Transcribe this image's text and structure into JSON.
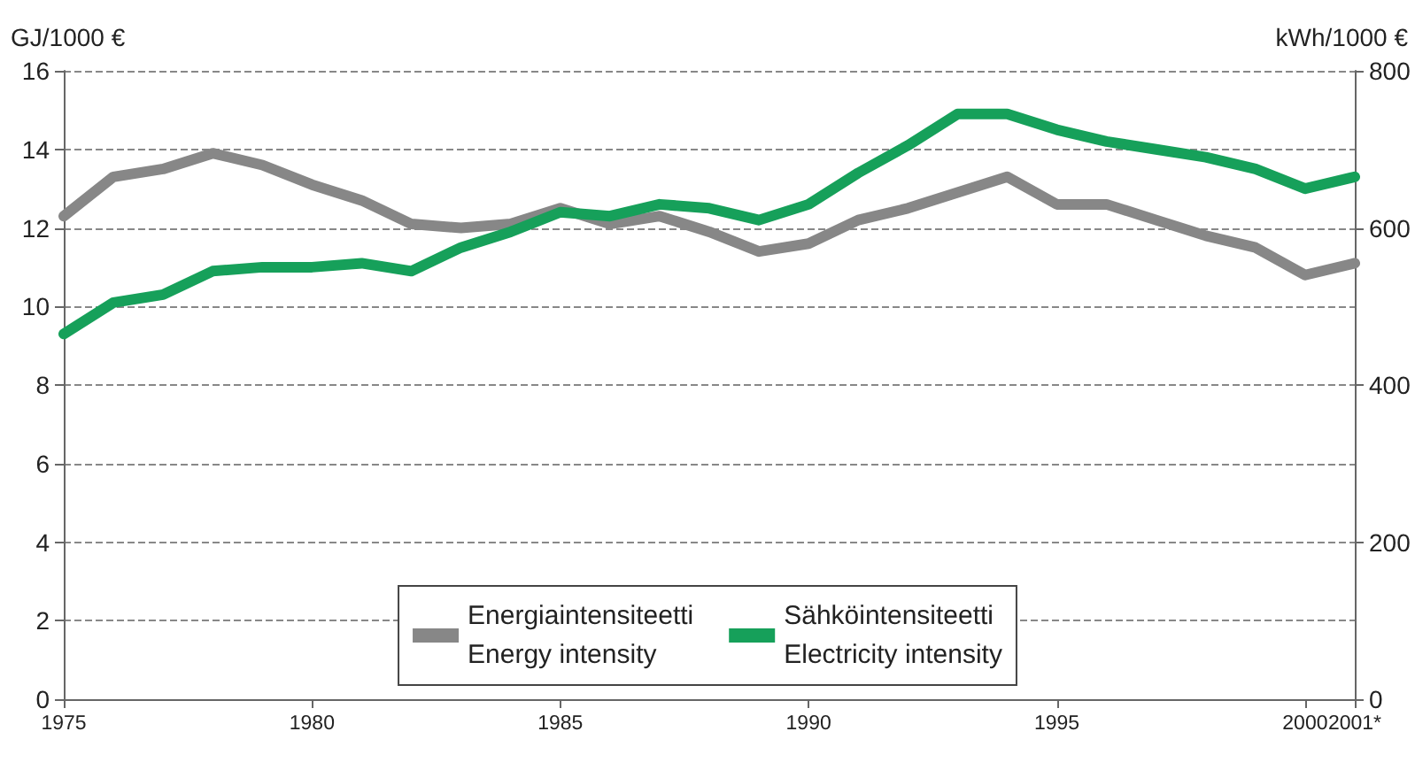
{
  "chart_data": {
    "type": "line",
    "ylabel": "GJ/1000 €",
    "y2label": "kWh/1000 €",
    "x": [
      1975,
      1976,
      1977,
      1978,
      1979,
      1980,
      1981,
      1982,
      1983,
      1984,
      1985,
      1986,
      1987,
      1988,
      1989,
      1990,
      1991,
      1992,
      1993,
      1994,
      1995,
      1996,
      1997,
      1998,
      1999,
      2000,
      2001
    ],
    "series": [
      {
        "name": "Energiaintensiteetti\nEnergy intensity",
        "color": "#878787",
        "values": [
          12.3,
          13.3,
          13.5,
          13.9,
          13.6,
          13.1,
          12.7,
          12.1,
          12.0,
          12.1,
          12.5,
          12.1,
          12.3,
          11.9,
          11.4,
          11.6,
          12.2,
          12.5,
          12.9,
          13.3,
          12.6,
          12.6,
          12.2,
          11.8,
          11.5,
          10.8,
          11.1
        ]
      },
      {
        "name": "Sähköintensiteetti\nElectricity intensity",
        "color": "#16a05a",
        "axis": "y2",
        "values": [
          465,
          505,
          515,
          545,
          550,
          550,
          555,
          545,
          575,
          595,
          620,
          615,
          630,
          625,
          610,
          630,
          670,
          705,
          745,
          745,
          725,
          710,
          700,
          690,
          675,
          650,
          665
        ]
      }
    ],
    "xlim": [
      1975,
      2001
    ],
    "xticks": [
      1975,
      1980,
      1985,
      1990,
      1995,
      2000,
      {
        "value": 2001,
        "label": "2001*"
      }
    ],
    "ylim": [
      0,
      16
    ],
    "yticks": [
      0,
      2,
      4,
      6,
      8,
      10,
      12,
      14,
      16
    ],
    "y2lim": [
      0,
      800
    ],
    "y2ticks": [
      0,
      200,
      400,
      600,
      800
    ],
    "grid": "y",
    "legend": "bottom",
    "marker": "none",
    "line_style": "solid"
  }
}
